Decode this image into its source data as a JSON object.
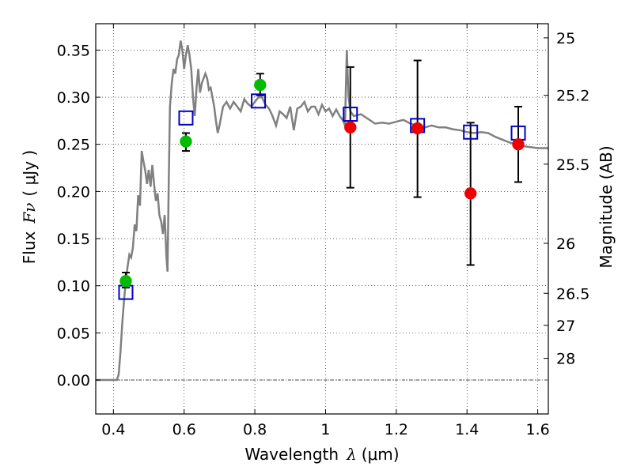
{
  "chart_data": {
    "type": "scatter",
    "title": "",
    "xlabel": {
      "prefix": "Wavelength",
      "symbol": "λ",
      "unit": "(μm)"
    },
    "ylabel": {
      "prefix": "Flux",
      "symbol": "Fν",
      "unit": "( μJy )"
    },
    "y2label": "Magnitude (AB)",
    "xlim": [
      0.35,
      1.63
    ],
    "ylim": [
      -0.036,
      0.378
    ],
    "grid": true,
    "x_ticks": [
      {
        "value": 0.4,
        "label": "0.4"
      },
      {
        "value": 0.6,
        "label": "0.6"
      },
      {
        "value": 0.8,
        "label": "0.8"
      },
      {
        "value": 1.0,
        "label": "1"
      },
      {
        "value": 1.2,
        "label": "1.2"
      },
      {
        "value": 1.4,
        "label": "1.4"
      },
      {
        "value": 1.6,
        "label": "1.6"
      }
    ],
    "y_ticks": [
      {
        "value": 0.0,
        "label": "0.00"
      },
      {
        "value": 0.05,
        "label": "0.05"
      },
      {
        "value": 0.1,
        "label": "0.10"
      },
      {
        "value": 0.15,
        "label": "0.15"
      },
      {
        "value": 0.2,
        "label": "0.20"
      },
      {
        "value": 0.25,
        "label": "0.25"
      },
      {
        "value": 0.3,
        "label": "0.30"
      },
      {
        "value": 0.35,
        "label": "0.35"
      }
    ],
    "y2_ticks": [
      {
        "flux": 0.363,
        "label": "25"
      },
      {
        "flux": 0.302,
        "label": "25.2"
      },
      {
        "flux": 0.229,
        "label": "25.5"
      },
      {
        "flux": 0.145,
        "label": "26"
      },
      {
        "flux": 0.092,
        "label": "26.5"
      },
      {
        "flux": 0.058,
        "label": "27"
      },
      {
        "flux": 0.023,
        "label": "28"
      }
    ],
    "series": [
      {
        "kind": "line",
        "color": "#808080",
        "points": [
          [
            0.35,
            0.0
          ],
          [
            0.4,
            0.0
          ],
          [
            0.41,
            0.0
          ],
          [
            0.415,
            0.006
          ],
          [
            0.42,
            0.03
          ],
          [
            0.425,
            0.06
          ],
          [
            0.43,
            0.085
          ],
          [
            0.435,
            0.105
          ],
          [
            0.44,
            0.12
          ],
          [
            0.445,
            0.133
          ],
          [
            0.45,
            0.13
          ],
          [
            0.455,
            0.14
          ],
          [
            0.46,
            0.165
          ],
          [
            0.465,
            0.158
          ],
          [
            0.47,
            0.196
          ],
          [
            0.475,
            0.185
          ],
          [
            0.48,
            0.243
          ],
          [
            0.485,
            0.232
          ],
          [
            0.49,
            0.222
          ],
          [
            0.495,
            0.208
          ],
          [
            0.5,
            0.223
          ],
          [
            0.505,
            0.205
          ],
          [
            0.51,
            0.228
          ],
          [
            0.515,
            0.208
          ],
          [
            0.52,
            0.19
          ],
          [
            0.525,
            0.198
          ],
          [
            0.53,
            0.175
          ],
          [
            0.535,
            0.168
          ],
          [
            0.54,
            0.155
          ],
          [
            0.545,
            0.175
          ],
          [
            0.55,
            0.13
          ],
          [
            0.553,
            0.115
          ],
          [
            0.556,
            0.2
          ],
          [
            0.56,
            0.29
          ],
          [
            0.565,
            0.315
          ],
          [
            0.57,
            0.33
          ],
          [
            0.575,
            0.325
          ],
          [
            0.58,
            0.34
          ],
          [
            0.585,
            0.345
          ],
          [
            0.59,
            0.36
          ],
          [
            0.595,
            0.35
          ],
          [
            0.6,
            0.33
          ],
          [
            0.605,
            0.345
          ],
          [
            0.61,
            0.355
          ],
          [
            0.615,
            0.345
          ],
          [
            0.62,
            0.33
          ],
          [
            0.625,
            0.3
          ],
          [
            0.63,
            0.28
          ],
          [
            0.635,
            0.31
          ],
          [
            0.64,
            0.33
          ],
          [
            0.645,
            0.305
          ],
          [
            0.65,
            0.315
          ],
          [
            0.655,
            0.32
          ],
          [
            0.66,
            0.325
          ],
          [
            0.665,
            0.32
          ],
          [
            0.67,
            0.308
          ],
          [
            0.675,
            0.31
          ],
          [
            0.68,
            0.3
          ],
          [
            0.685,
            0.29
          ],
          [
            0.69,
            0.275
          ],
          [
            0.695,
            0.262
          ],
          [
            0.7,
            0.27
          ],
          [
            0.71,
            0.29
          ],
          [
            0.72,
            0.295
          ],
          [
            0.73,
            0.288
          ],
          [
            0.74,
            0.295
          ],
          [
            0.75,
            0.29
          ],
          [
            0.76,
            0.285
          ],
          [
            0.77,
            0.298
          ],
          [
            0.78,
            0.293
          ],
          [
            0.79,
            0.29
          ],
          [
            0.8,
            0.295
          ],
          [
            0.81,
            0.3
          ],
          [
            0.82,
            0.3
          ],
          [
            0.83,
            0.292
          ],
          [
            0.84,
            0.288
          ],
          [
            0.85,
            0.28
          ],
          [
            0.86,
            0.27
          ],
          [
            0.87,
            0.285
          ],
          [
            0.88,
            0.282
          ],
          [
            0.89,
            0.278
          ],
          [
            0.9,
            0.29
          ],
          [
            0.91,
            0.265
          ],
          [
            0.92,
            0.288
          ],
          [
            0.93,
            0.29
          ],
          [
            0.94,
            0.295
          ],
          [
            0.95,
            0.285
          ],
          [
            0.96,
            0.29
          ],
          [
            0.97,
            0.29
          ],
          [
            0.98,
            0.282
          ],
          [
            0.99,
            0.292
          ],
          [
            1.0,
            0.285
          ],
          [
            1.01,
            0.288
          ],
          [
            1.02,
            0.28
          ],
          [
            1.03,
            0.287
          ],
          [
            1.04,
            0.28
          ],
          [
            1.05,
            0.275
          ],
          [
            1.055,
            0.27
          ],
          [
            1.06,
            0.35
          ],
          [
            1.065,
            0.3
          ],
          [
            1.07,
            0.285
          ],
          [
            1.08,
            0.28
          ],
          [
            1.1,
            0.282
          ],
          [
            1.12,
            0.277
          ],
          [
            1.14,
            0.272
          ],
          [
            1.16,
            0.273
          ],
          [
            1.18,
            0.272
          ],
          [
            1.2,
            0.274
          ],
          [
            1.22,
            0.276
          ],
          [
            1.24,
            0.272
          ],
          [
            1.26,
            0.27
          ],
          [
            1.28,
            0.268
          ],
          [
            1.3,
            0.27
          ],
          [
            1.32,
            0.268
          ],
          [
            1.34,
            0.268
          ],
          [
            1.36,
            0.266
          ],
          [
            1.38,
            0.265
          ],
          [
            1.4,
            0.263
          ],
          [
            1.42,
            0.262
          ],
          [
            1.44,
            0.263
          ],
          [
            1.46,
            0.262
          ],
          [
            1.48,
            0.258
          ],
          [
            1.5,
            0.255
          ],
          [
            1.52,
            0.252
          ],
          [
            1.54,
            0.25
          ],
          [
            1.56,
            0.248
          ],
          [
            1.58,
            0.247
          ],
          [
            1.6,
            0.246
          ],
          [
            1.63,
            0.246
          ]
        ]
      },
      {
        "kind": "open-square",
        "color": "#0000cc",
        "points": [
          {
            "x": 0.435,
            "y": 0.093
          },
          {
            "x": 0.605,
            "y": 0.278
          },
          {
            "x": 0.81,
            "y": 0.296
          },
          {
            "x": 1.07,
            "y": 0.282
          },
          {
            "x": 1.26,
            "y": 0.27
          },
          {
            "x": 1.41,
            "y": 0.263
          },
          {
            "x": 1.545,
            "y": 0.262
          }
        ]
      },
      {
        "kind": "filled-circle",
        "color": "#00bb00",
        "points": [
          {
            "x": 0.435,
            "y": 0.105,
            "ylo": 0.098,
            "yhi": 0.114
          },
          {
            "x": 0.605,
            "y": 0.253,
            "ylo": 0.243,
            "yhi": 0.262
          },
          {
            "x": 0.815,
            "y": 0.313,
            "ylo": 0.302,
            "yhi": 0.325
          }
        ]
      },
      {
        "kind": "filled-circle",
        "color": "#ee0000",
        "points": [
          {
            "x": 1.07,
            "y": 0.268,
            "ylo": 0.204,
            "yhi": 0.332
          },
          {
            "x": 1.26,
            "y": 0.267,
            "ylo": 0.194,
            "yhi": 0.339
          },
          {
            "x": 1.41,
            "y": 0.198,
            "ylo": 0.122,
            "yhi": 0.273
          },
          {
            "x": 1.545,
            "y": 0.25,
            "ylo": 0.21,
            "yhi": 0.29
          }
        ]
      }
    ]
  }
}
